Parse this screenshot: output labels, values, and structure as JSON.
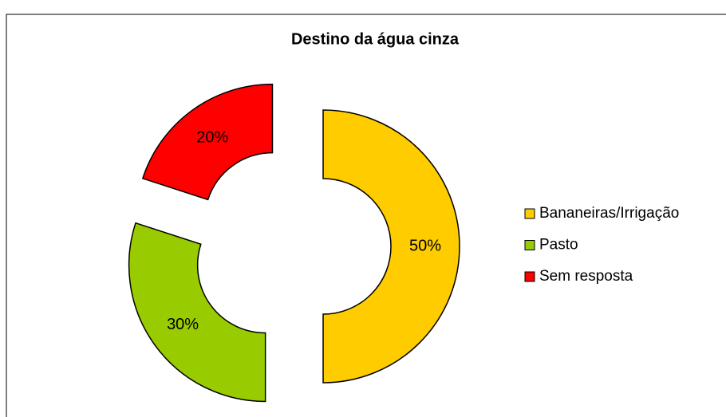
{
  "chart_data": {
    "type": "donut",
    "title": "Destino da água cinza",
    "categories": [
      "Bananeiras/Irrigação",
      "Pasto",
      "Sem resposta"
    ],
    "values": [
      50,
      30,
      20
    ],
    "value_labels": [
      "50%",
      "30%",
      "20%"
    ],
    "colors": [
      "#ffcc00",
      "#99cc00",
      "#ff0000"
    ],
    "legend": "right",
    "exploded": true
  }
}
